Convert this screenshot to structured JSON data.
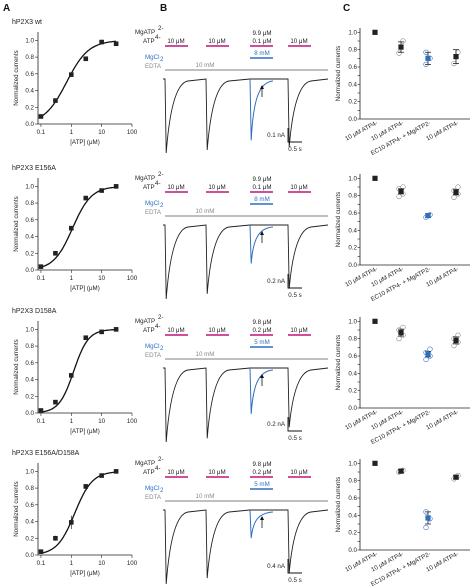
{
  "panel_labels": [
    "A",
    "B",
    "C"
  ],
  "colors": {
    "ink": "#222222",
    "magenta": "#c4127a",
    "blue": "#2f6fc0",
    "grey": "#9a9a9a",
    "open_marker": "#888888"
  },
  "rows": [
    {
      "construct": "hP2X3 wt",
      "protocol": {
        "mgatp_label": "MgATP",
        "mgatp_charge": "2-",
        "atp_label": "ATP",
        "atp_charge": "4-",
        "pulse1": "10 μM",
        "pulse2": "10 μM",
        "pulse3_top": "9.9 μM",
        "pulse3_bot": "0.1 μM",
        "pulse4": "10 μM",
        "mgcl_label": "MgCl",
        "mgcl_sub": "2",
        "mgcl_value": "8 mM",
        "edta_label": "EDTA",
        "edta_value": "10 mM"
      },
      "trace": {
        "amplitudes": [
          1.0,
          0.96,
          0.83,
          0.92
        ],
        "color3": "#2f6fc0"
      },
      "scale": {
        "current": "0.1 nA",
        "time": "0.5 s"
      }
    },
    {
      "construct": "hP2X3 E156A",
      "protocol": {
        "mgatp_label": "MgATP",
        "mgatp_charge": "2-",
        "atp_label": "ATP",
        "atp_charge": "4-",
        "pulse1": "10 μM",
        "pulse2": "10 μM",
        "pulse3_top": "9.9 μM",
        "pulse3_bot": "0.1 μM",
        "pulse4": "10 μM",
        "mgcl_label": "MgCl",
        "mgcl_sub": "2",
        "mgcl_value": "8 mM",
        "edta_label": "EDTA",
        "edta_value": "10 mM"
      },
      "trace": {
        "amplitudes": [
          1.0,
          0.93,
          0.52,
          0.86
        ],
        "color3": "#2f6fc0"
      },
      "scale": {
        "current": "0.2 nA",
        "time": "0.5 s"
      }
    },
    {
      "construct": "hP2X3 D158A",
      "protocol": {
        "mgatp_label": "MgATP",
        "mgatp_charge": "2-",
        "atp_label": "ATP",
        "atp_charge": "4-",
        "pulse1": "10 μM",
        "pulse2": "10 μM",
        "pulse3_top": "9.8 μM",
        "pulse3_bot": "0.2 μM",
        "pulse4": "10 μM",
        "mgcl_label": "MgCl",
        "mgcl_sub": "2",
        "mgcl_value": "5 mM",
        "edta_label": "EDTA",
        "edta_value": "10 mM"
      },
      "trace": {
        "amplitudes": [
          1.0,
          0.95,
          0.62,
          0.8
        ],
        "color3": "#2f6fc0"
      },
      "scale": {
        "current": "0.2 nA",
        "time": "0.5 s"
      }
    },
    {
      "construct": "hP2X3 E156A/D158A",
      "protocol": {
        "mgatp_label": "MgATP",
        "mgatp_charge": "2-",
        "atp_label": "ATP",
        "atp_charge": "4-",
        "pulse1": "10 μM",
        "pulse2": "10 μM",
        "pulse3_top": "9.8 μM",
        "pulse3_bot": "0.2 μM",
        "pulse4": "10 μM",
        "mgcl_label": "MgCl",
        "mgcl_sub": "2",
        "mgcl_value": "5 mM",
        "edta_label": "EDTA",
        "edta_value": "10 mM"
      },
      "trace": {
        "amplitudes": [
          1.0,
          0.92,
          0.38,
          0.85
        ],
        "color3": "#2f6fc0"
      },
      "scale": {
        "current": "0.4 nA",
        "time": "0.5 s"
      }
    }
  ],
  "chart_data": [
    {
      "panel": "A",
      "type": "scatter",
      "title": "hP2X3 wt",
      "xlabel": "[ATP] (μM)",
      "ylabel": "Normalized currents",
      "xscale": "log",
      "xlim": [
        0.08,
        100
      ],
      "ylim": [
        0,
        1.1
      ],
      "xticks": [
        "0.1",
        "1",
        "10",
        "100"
      ],
      "yticks": [
        "0.0",
        "0.2",
        "0.4",
        "0.6",
        "0.8",
        "1.0"
      ],
      "x": [
        0.1,
        0.3,
        1,
        3,
        10,
        30
      ],
      "y": [
        0.09,
        0.28,
        0.59,
        0.78,
        0.98,
        0.96
      ],
      "fit": "hill",
      "ec50": 0.7,
      "hill": 1.2
    },
    {
      "panel": "A",
      "type": "scatter",
      "title": "hP2X3 E156A",
      "xlabel": "[ATP] (μM)",
      "ylabel": "Normalized currents",
      "xscale": "log",
      "xlim": [
        0.08,
        100
      ],
      "ylim": [
        0,
        1.1
      ],
      "xticks": [
        "0.1",
        "1",
        "10",
        "100"
      ],
      "yticks": [
        "0.0",
        "0.2",
        "0.4",
        "0.6",
        "0.8",
        "1.0"
      ],
      "x": [
        0.1,
        0.3,
        1,
        3,
        10,
        30
      ],
      "y": [
        0.04,
        0.2,
        0.5,
        0.86,
        0.95,
        1.0
      ],
      "fit": "hill",
      "ec50": 1.1,
      "hill": 1.4
    },
    {
      "panel": "A",
      "type": "scatter",
      "title": "hP2X3 D158A",
      "xlabel": "[ATP] (μM)",
      "ylabel": "Normalized currents",
      "xscale": "log",
      "xlim": [
        0.08,
        100
      ],
      "ylim": [
        0,
        1.1
      ],
      "xticks": [
        "0.1",
        "1",
        "10",
        "100"
      ],
      "yticks": [
        "0.0",
        "0.2",
        "0.4",
        "0.6",
        "0.8",
        "1.0"
      ],
      "x": [
        0.1,
        0.3,
        1,
        3,
        10,
        30
      ],
      "y": [
        0.03,
        0.13,
        0.45,
        0.9,
        0.97,
        1.0
      ],
      "fit": "hill",
      "ec50": 1.2,
      "hill": 1.8
    },
    {
      "panel": "A",
      "type": "scatter",
      "title": "hP2X3 E156A/D158A",
      "xlabel": "[ATP] (μM)",
      "ylabel": "Normalized currents",
      "xscale": "log",
      "xlim": [
        0.08,
        100
      ],
      "ylim": [
        0,
        1.1
      ],
      "xticks": [
        "0.1",
        "1",
        "10",
        "100"
      ],
      "yticks": [
        "0.0",
        "0.2",
        "0.4",
        "0.6",
        "0.8",
        "1.0"
      ],
      "x": [
        0.1,
        0.3,
        1,
        3,
        10,
        30
      ],
      "y": [
        0.04,
        0.2,
        0.39,
        0.82,
        0.95,
        1.0
      ],
      "yerr": [
        0.01,
        0.03,
        0.08,
        0.03,
        0.02,
        0.01
      ],
      "fit": "hill",
      "ec50": 1.3,
      "hill": 1.5
    },
    {
      "panel": "C",
      "type": "scatter",
      "ylabel": "Normalized currents",
      "ylim": [
        0,
        1.05
      ],
      "yticks": [
        "0.0",
        "0.1",
        "0.2",
        "0.3",
        "0.4",
        "0.5",
        "0.6",
        "0.7",
        "0.8",
        "0.9",
        "1.0"
      ],
      "categories": [
        "10 μM ATP4-",
        "10 μM ATP4-",
        "EC10 ATP4- + MgATP2-",
        "10 μM ATP4-"
      ],
      "values": [
        1.0,
        0.83,
        0.7,
        0.72
      ],
      "errors": [
        0,
        0.06,
        0.07,
        0.08
      ],
      "fills": [
        "#222222",
        "#222222",
        "#2f6fc0",
        "#222222"
      ],
      "replicates": [
        [],
        [
          0.76,
          0.9
        ],
        [
          0.63,
          0.7,
          0.77
        ],
        [
          0.64,
          0.77
        ]
      ]
    },
    {
      "panel": "C",
      "type": "scatter",
      "ylabel": "Normalized currents",
      "ylim": [
        0,
        1.05
      ],
      "yticks": [
        "0.0",
        "0.1",
        "0.2",
        "0.3",
        "0.4",
        "0.5",
        "0.6",
        "0.7",
        "0.8",
        "0.9",
        "1.0"
      ],
      "categories": [
        "10 μM ATP4-",
        "10 μM ATP4-",
        "EC10 ATP4- + MgATP2-",
        "10 μM ATP4-"
      ],
      "values": [
        1.0,
        0.85,
        0.57,
        0.84
      ],
      "errors": [
        0,
        0.03,
        0.02,
        0.03
      ],
      "fills": [
        "#222222",
        "#222222",
        "#2f6fc0",
        "#222222"
      ],
      "replicates": [
        [],
        [
          0.79,
          0.82,
          0.88,
          0.9
        ],
        [
          0.55,
          0.58
        ],
        [
          0.78,
          0.82,
          0.86,
          0.9
        ]
      ]
    },
    {
      "panel": "C",
      "type": "scatter",
      "ylabel": "Normalized currents",
      "ylim": [
        0,
        1.05
      ],
      "yticks": [
        "0.0",
        "0.1",
        "0.2",
        "0.3",
        "0.4",
        "0.5",
        "0.6",
        "0.7",
        "0.8",
        "0.9",
        "1.0"
      ],
      "categories": [
        "10 μM ATP4-",
        "10 μM ATP4-",
        "EC10 ATP4- + MgATP2-",
        "10 μM ATP4-"
      ],
      "values": [
        1.0,
        0.87,
        0.62,
        0.78
      ],
      "errors": [
        0,
        0.04,
        0.03,
        0.04
      ],
      "fills": [
        "#222222",
        "#222222",
        "#2f6fc0",
        "#222222"
      ],
      "replicates": [
        [],
        [
          0.8,
          0.84,
          0.9,
          0.93
        ],
        [
          0.56,
          0.6,
          0.64,
          0.68
        ],
        [
          0.72,
          0.76,
          0.8,
          0.84
        ]
      ]
    },
    {
      "panel": "C",
      "type": "scatter",
      "ylabel": "Normalized currents",
      "ylim": [
        0,
        1.05
      ],
      "yticks": [
        "0.0",
        "0.1",
        "0.2",
        "0.3",
        "0.4",
        "0.5",
        "0.6",
        "0.7",
        "0.8",
        "0.9",
        "1.0"
      ],
      "categories": [
        "10 μM ATP4-",
        "10 μM ATP4-",
        "EC10 ATP4- + MgATP2-",
        "10 μM ATP4-"
      ],
      "values": [
        1.0,
        0.91,
        0.37,
        0.84
      ],
      "errors": [
        0,
        0.02,
        0.07,
        0.02
      ],
      "fills": [
        "#222222",
        "#222222",
        "#2f6fc0",
        "#222222"
      ],
      "replicates": [
        [],
        [
          0.9,
          0.92
        ],
        [
          0.26,
          0.36,
          0.44
        ],
        [
          0.82,
          0.86
        ]
      ]
    }
  ]
}
